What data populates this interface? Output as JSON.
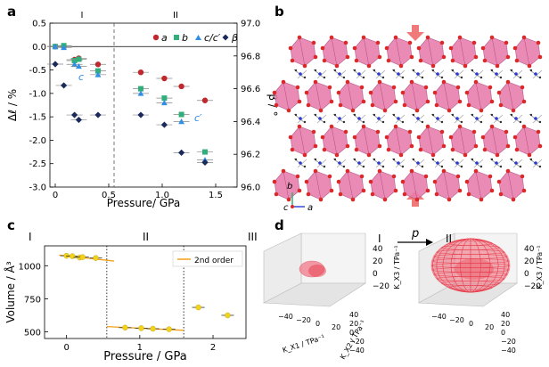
{
  "panel_labels": [
    "a",
    "b",
    "c",
    "d"
  ],
  "chart_data": [
    {
      "type": "scatter",
      "panel": "a",
      "xlabel": "Pressure/ GPa",
      "ylabel_left": "Δℓ / %",
      "ylabel_right": "β / °",
      "xlim": [
        -0.05,
        1.7
      ],
      "ylim_left": [
        -3.0,
        0.5
      ],
      "ylim_right": [
        96.0,
        97.0
      ],
      "xticks": [
        "0",
        "0.5",
        "1.0",
        "1.5"
      ],
      "xtick_values": [
        0,
        0.5,
        1.0,
        1.5
      ],
      "yticks_left": [
        "0.5",
        "0.0",
        "-0.5",
        "-1.0",
        "-1.5",
        "-2.0",
        "-2.5",
        "-3.0"
      ],
      "ytick_left_values": [
        0.5,
        0.0,
        -0.5,
        -1.0,
        -1.5,
        -2.0,
        -2.5,
        -3.0
      ],
      "yticks_right": [
        "97.0",
        "96.8",
        "96.6",
        "96.4",
        "96.2",
        "96.0"
      ],
      "ytick_right_values": [
        97.0,
        96.8,
        96.6,
        96.4,
        96.2,
        96.0
      ],
      "phase_labels": [
        "I",
        "II"
      ],
      "phase_boundary": 0.55,
      "annotations": [
        "c",
        "c′"
      ],
      "series": [
        {
          "name": "a",
          "marker": "circle",
          "color": "#c0282e",
          "axis": "left",
          "x": [
            0,
            0.08,
            0.18,
            0.22,
            0.4,
            0.8,
            1.02,
            1.18,
            1.4
          ],
          "y": [
            0.0,
            0.0,
            -0.28,
            -0.25,
            -0.38,
            -0.55,
            -0.68,
            -0.85,
            -1.15
          ]
        },
        {
          "name": "b",
          "marker": "square",
          "color": "#2fb07a",
          "axis": "left",
          "x": [
            0,
            0.08,
            0.18,
            0.22,
            0.4,
            0.8,
            1.02,
            1.18,
            1.4
          ],
          "y": [
            0.0,
            0.02,
            -0.3,
            -0.27,
            -0.52,
            -0.9,
            -1.1,
            -1.45,
            -2.25
          ]
        },
        {
          "name": "c/c′",
          "marker": "triangle",
          "color": "#2f8ee8",
          "axis": "left",
          "x": [
            0,
            0.08,
            0.18,
            0.22,
            0.4,
            0.8,
            1.02,
            1.18,
            1.4
          ],
          "y": [
            0.0,
            -0.02,
            -0.38,
            -0.42,
            -0.6,
            -1.0,
            -1.2,
            -1.6,
            -2.42
          ]
        },
        {
          "name": "β",
          "marker": "diamond",
          "color": "#1a2a5a",
          "axis": "right",
          "x": [
            0,
            0.08,
            0.18,
            0.22,
            0.4,
            0.8,
            1.02,
            1.18,
            1.4
          ],
          "y": [
            96.75,
            96.62,
            96.44,
            96.41,
            96.44,
            96.44,
            96.38,
            96.21,
            96.15
          ]
        }
      ]
    },
    {
      "type": "scatter",
      "panel": "c",
      "xlabel": "Pressure / GPa",
      "ylabel": "Volume / Å³",
      "xlim": [
        -0.3,
        2.45
      ],
      "ylim": [
        450,
        1150
      ],
      "xticks": [
        "0",
        "1",
        "2"
      ],
      "xtick_values": [
        0,
        1,
        2
      ],
      "yticks": [
        "1000",
        "750",
        "500"
      ],
      "ytick_values": [
        1000,
        750,
        500
      ],
      "phase_labels": [
        "I",
        "II",
        "III"
      ],
      "phase_boundaries": [
        0.55,
        1.6
      ],
      "legend": "2nd order",
      "legend_sup": "nd",
      "series": [
        {
          "name": "data",
          "marker": "circle",
          "color": "#f2d21b",
          "x": [
            0,
            0.08,
            0.18,
            0.22,
            0.4,
            0.8,
            1.02,
            1.18,
            1.4,
            1.8,
            2.2
          ],
          "y": [
            1075,
            1072,
            1062,
            1065,
            1058,
            532,
            528,
            524,
            520,
            685,
            625
          ]
        }
      ],
      "fits": [
        {
          "x": [
            -0.1,
            0.65
          ],
          "y": [
            1080,
            1035
          ]
        },
        {
          "x": [
            0.55,
            1.6
          ],
          "y": [
            540,
            512
          ]
        }
      ]
    }
  ],
  "panel_b": {
    "axis_labels": [
      "b",
      "c",
      "a"
    ]
  },
  "panel_d": {
    "transition_symbol": "p",
    "phase_labels": [
      "I",
      "II"
    ],
    "axis_k_x3": "K_X3 / TPa⁻¹",
    "axis_k_x1": "K_X1 / TPa⁻¹",
    "axis_k_x2": "K_X2 / TPa⁻¹",
    "ticks_vertical": [
      "40",
      "20",
      "0",
      "−20"
    ],
    "ticks_front": [
      "−40",
      "−20",
      "0",
      "20"
    ],
    "ticks_depth": [
      "40",
      "20",
      "0",
      "−20",
      "−40"
    ]
  },
  "colors": {
    "polyhedra": "#e87fae",
    "oxygen": "#d82a2a",
    "arrow": "#f07a7a",
    "surface": "#e83a4a"
  }
}
